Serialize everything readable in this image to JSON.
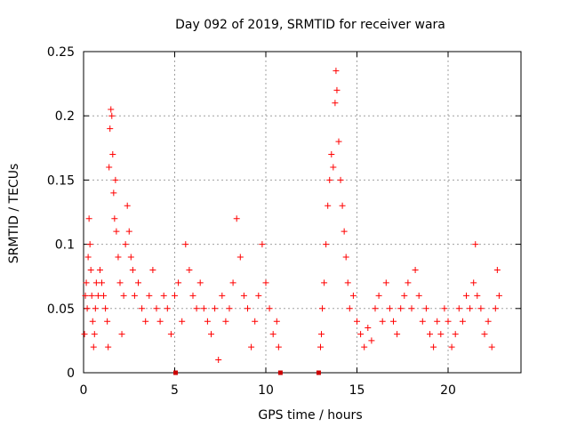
{
  "chart_data": {
    "type": "scatter",
    "title": "Day 092 of 2019, SRMTID for receiver wara",
    "xlabel": "GPS time / hours",
    "ylabel": "SRMTID / TECUs",
    "xlim": [
      0,
      24
    ],
    "ylim": [
      0,
      0.25
    ],
    "grid": true,
    "legend": "none",
    "xticks": [
      {
        "value": 0,
        "label": "0"
      },
      {
        "value": 5,
        "label": "5"
      },
      {
        "value": 10,
        "label": "10"
      },
      {
        "value": 15,
        "label": "15"
      },
      {
        "value": 20,
        "label": "20"
      }
    ],
    "yticks": [
      {
        "value": 0,
        "label": "0"
      },
      {
        "value": 0.05,
        "label": "0.05"
      },
      {
        "value": 0.1,
        "label": "0.1"
      },
      {
        "value": 0.15,
        "label": "0.15"
      },
      {
        "value": 0.2,
        "label": "0.2"
      },
      {
        "value": 0.25,
        "label": "0.25"
      }
    ],
    "marker_color": "#ff0000",
    "axis_marker_color": "#cc0000",
    "series": [
      {
        "name": "SRMTID",
        "marker": "plus",
        "points": [
          [
            0.05,
            0.03
          ],
          [
            0.1,
            0.06
          ],
          [
            0.15,
            0.07
          ],
          [
            0.2,
            0.05
          ],
          [
            0.25,
            0.09
          ],
          [
            0.3,
            0.12
          ],
          [
            0.35,
            0.1
          ],
          [
            0.4,
            0.08
          ],
          [
            0.45,
            0.06
          ],
          [
            0.5,
            0.04
          ],
          [
            0.55,
            0.02
          ],
          [
            0.6,
            0.03
          ],
          [
            0.65,
            0.05
          ],
          [
            0.7,
            0.07
          ],
          [
            0.8,
            0.06
          ],
          [
            0.9,
            0.08
          ],
          [
            1.0,
            0.07
          ],
          [
            1.1,
            0.06
          ],
          [
            1.2,
            0.05
          ],
          [
            1.3,
            0.04
          ],
          [
            1.35,
            0.02
          ],
          [
            1.4,
            0.16
          ],
          [
            1.45,
            0.19
          ],
          [
            1.5,
            0.205
          ],
          [
            1.55,
            0.2
          ],
          [
            1.6,
            0.17
          ],
          [
            1.65,
            0.14
          ],
          [
            1.7,
            0.12
          ],
          [
            1.75,
            0.15
          ],
          [
            1.8,
            0.11
          ],
          [
            1.9,
            0.09
          ],
          [
            2.0,
            0.07
          ],
          [
            2.1,
            0.03
          ],
          [
            2.2,
            0.06
          ],
          [
            2.3,
            0.1
          ],
          [
            2.4,
            0.13
          ],
          [
            2.5,
            0.11
          ],
          [
            2.6,
            0.09
          ],
          [
            2.7,
            0.08
          ],
          [
            2.8,
            0.06
          ],
          [
            3.0,
            0.07
          ],
          [
            3.2,
            0.05
          ],
          [
            3.4,
            0.04
          ],
          [
            3.6,
            0.06
          ],
          [
            3.8,
            0.08
          ],
          [
            4.0,
            0.05
          ],
          [
            4.2,
            0.04
          ],
          [
            4.4,
            0.06
          ],
          [
            4.6,
            0.05
          ],
          [
            4.8,
            0.03
          ],
          [
            5.0,
            0.06
          ],
          [
            5.2,
            0.07
          ],
          [
            5.4,
            0.04
          ],
          [
            5.6,
            0.1
          ],
          [
            5.8,
            0.08
          ],
          [
            6.0,
            0.06
          ],
          [
            6.2,
            0.05
          ],
          [
            6.4,
            0.07
          ],
          [
            6.6,
            0.05
          ],
          [
            6.8,
            0.04
          ],
          [
            7.0,
            0.03
          ],
          [
            7.2,
            0.05
          ],
          [
            7.4,
            0.01
          ],
          [
            7.6,
            0.06
          ],
          [
            7.8,
            0.04
          ],
          [
            8.0,
            0.05
          ],
          [
            8.2,
            0.07
          ],
          [
            8.4,
            0.12
          ],
          [
            8.6,
            0.09
          ],
          [
            8.8,
            0.06
          ],
          [
            9.0,
            0.05
          ],
          [
            9.2,
            0.02
          ],
          [
            9.4,
            0.04
          ],
          [
            9.6,
            0.06
          ],
          [
            9.8,
            0.1
          ],
          [
            10.0,
            0.07
          ],
          [
            10.2,
            0.05
          ],
          [
            10.4,
            0.03
          ],
          [
            10.6,
            0.04
          ],
          [
            10.7,
            0.02
          ],
          [
            13.0,
            0.02
          ],
          [
            13.05,
            0.03
          ],
          [
            13.1,
            0.05
          ],
          [
            13.2,
            0.07
          ],
          [
            13.3,
            0.1
          ],
          [
            13.4,
            0.13
          ],
          [
            13.5,
            0.15
          ],
          [
            13.6,
            0.17
          ],
          [
            13.7,
            0.16
          ],
          [
            13.8,
            0.21
          ],
          [
            13.85,
            0.235
          ],
          [
            13.9,
            0.22
          ],
          [
            14.0,
            0.18
          ],
          [
            14.1,
            0.15
          ],
          [
            14.2,
            0.13
          ],
          [
            14.3,
            0.11
          ],
          [
            14.4,
            0.09
          ],
          [
            14.5,
            0.07
          ],
          [
            14.6,
            0.05
          ],
          [
            14.8,
            0.06
          ],
          [
            15.0,
            0.04
          ],
          [
            15.2,
            0.03
          ],
          [
            15.4,
            0.02
          ],
          [
            15.6,
            0.035
          ],
          [
            15.8,
            0.025
          ],
          [
            16.0,
            0.05
          ],
          [
            16.2,
            0.06
          ],
          [
            16.4,
            0.04
          ],
          [
            16.6,
            0.07
          ],
          [
            16.8,
            0.05
          ],
          [
            17.0,
            0.04
          ],
          [
            17.2,
            0.03
          ],
          [
            17.4,
            0.05
          ],
          [
            17.6,
            0.06
          ],
          [
            17.8,
            0.07
          ],
          [
            18.0,
            0.05
          ],
          [
            18.2,
            0.08
          ],
          [
            18.4,
            0.06
          ],
          [
            18.6,
            0.04
          ],
          [
            18.8,
            0.05
          ],
          [
            19.0,
            0.03
          ],
          [
            19.2,
            0.02
          ],
          [
            19.4,
            0.04
          ],
          [
            19.6,
            0.03
          ],
          [
            19.8,
            0.05
          ],
          [
            20.0,
            0.04
          ],
          [
            20.2,
            0.02
          ],
          [
            20.4,
            0.03
          ],
          [
            20.6,
            0.05
          ],
          [
            20.8,
            0.04
          ],
          [
            21.0,
            0.06
          ],
          [
            21.2,
            0.05
          ],
          [
            21.4,
            0.07
          ],
          [
            21.5,
            0.1
          ],
          [
            21.6,
            0.06
          ],
          [
            21.8,
            0.05
          ],
          [
            22.0,
            0.03
          ],
          [
            22.2,
            0.04
          ],
          [
            22.4,
            0.02
          ],
          [
            22.6,
            0.05
          ],
          [
            22.7,
            0.08
          ],
          [
            22.8,
            0.06
          ]
        ]
      }
    ],
    "axis_markers": [
      5.05,
      10.8,
      12.9
    ]
  }
}
